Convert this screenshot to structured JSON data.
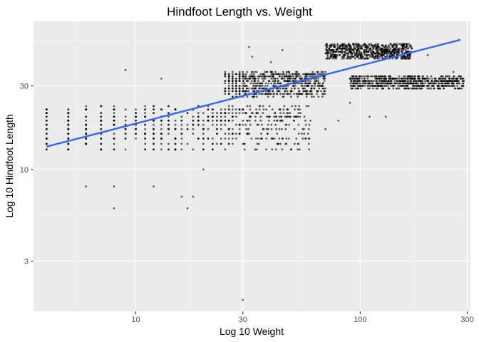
{
  "chart_data": {
    "type": "scatter",
    "title": "Hindfoot Length vs. Weight",
    "xlabel": "Log 10 Weight",
    "ylabel": "Log 10 Hindfoot Length",
    "x_scale": "log10",
    "y_scale": "log10",
    "xlim": [
      3.5,
      310
    ],
    "ylim": [
      1.55,
      70
    ],
    "x_ticks": [
      10,
      30,
      100,
      300
    ],
    "y_ticks": [
      3,
      10,
      30
    ],
    "grid": true,
    "legend": "none",
    "colors": {
      "panel": "#ebebeb",
      "grid_major": "#ffffff",
      "points": "#000000",
      "trend_line": "#3366ff"
    },
    "series": [
      {
        "type": "scatter",
        "point_alpha": 0.6,
        "clusters": [
          {
            "x_range": [
              4,
              60
            ],
            "y_range": [
              13,
              23
            ],
            "density": "very high"
          },
          {
            "x_range": [
              25,
              70
            ],
            "y_range": [
              26,
              36
            ],
            "density": "very high"
          },
          {
            "x_range": [
              70,
              170
            ],
            "y_range": [
              43,
              52
            ],
            "density": "very high"
          },
          {
            "x_range": [
              90,
              290
            ],
            "y_range": [
              29,
              34
            ],
            "density": "very high"
          }
        ],
        "sample_points": [
          {
            "x": 4,
            "y": 21
          },
          {
            "x": 4,
            "y": 14
          },
          {
            "x": 5,
            "y": 21
          },
          {
            "x": 6,
            "y": 8
          },
          {
            "x": 8,
            "y": 6
          },
          {
            "x": 8,
            "y": 8
          },
          {
            "x": 9,
            "y": 37
          },
          {
            "x": 12,
            "y": 8
          },
          {
            "x": 13,
            "y": 33
          },
          {
            "x": 16,
            "y": 7
          },
          {
            "x": 17,
            "y": 6
          },
          {
            "x": 18,
            "y": 7
          },
          {
            "x": 20,
            "y": 10
          },
          {
            "x": 30,
            "y": 1.8
          },
          {
            "x": 32,
            "y": 50
          },
          {
            "x": 33,
            "y": 44
          },
          {
            "x": 40,
            "y": 41
          },
          {
            "x": 45,
            "y": 48
          },
          {
            "x": 60,
            "y": 19
          },
          {
            "x": 70,
            "y": 17
          },
          {
            "x": 80,
            "y": 19
          },
          {
            "x": 90,
            "y": 24
          },
          {
            "x": 110,
            "y": 20
          },
          {
            "x": 130,
            "y": 20
          },
          {
            "x": 200,
            "y": 45
          },
          {
            "x": 260,
            "y": 36
          },
          {
            "x": 270,
            "y": 31
          },
          {
            "x": 280,
            "y": 33
          }
        ]
      },
      {
        "type": "line",
        "method": "linear fit (log-log)",
        "x": [
          4,
          280
        ],
        "y": [
          13.5,
          55
        ]
      }
    ]
  }
}
